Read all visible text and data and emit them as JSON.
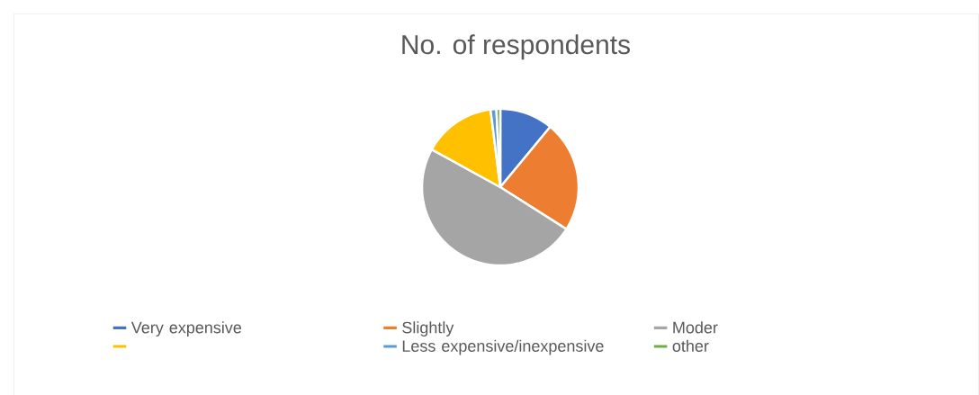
{
  "chart_data": {
    "type": "pie",
    "title": "No. of respondents",
    "categories": [
      "Very expensive",
      "Slightly",
      "Moder",
      null,
      "Less expensive/inexpensive",
      "other"
    ],
    "values": [
      11,
      23,
      49,
      15,
      1.2,
      0.8
    ],
    "colors": [
      "#4472c4",
      "#ed7d31",
      "#a5a5a5",
      "#ffc000",
      "#5b9bd5",
      "#70ad47"
    ],
    "legend": "bottom"
  }
}
